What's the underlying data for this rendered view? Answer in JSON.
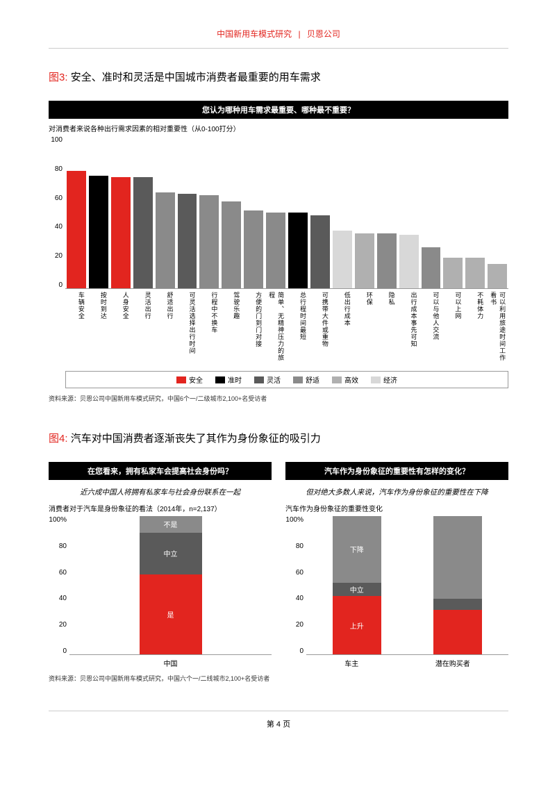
{
  "header": {
    "title": "中国新用车模式研究",
    "company": "贝恩公司",
    "separator": "|"
  },
  "fig3": {
    "label": "图3:",
    "title": "安全、准时和灵活是中国城市消费者最重要的用车需求",
    "question": "您认为哪种用车需求最重要、哪种最不重要？",
    "subtitle": "对消费者来说各种出行需求因素的相对重要性（从0-100打分）",
    "source": "资料来源：贝恩公司中国新用车模式研究，中国6个一/二级城市2,100+名受访者",
    "ylim": [
      0,
      100
    ],
    "ytick_step": 20,
    "yticks": [
      "100",
      "80",
      "60",
      "40",
      "20",
      "0"
    ],
    "colors": {
      "safety": "#e2251f",
      "ontime": "#000000",
      "flex": "#5a5a5a",
      "comfort": "#8a8a8a",
      "efficient": "#b0b0b0",
      "economy": "#d8d8d8"
    },
    "legend": [
      {
        "label": "安全",
        "color": "#e2251f"
      },
      {
        "label": "准时",
        "color": "#000000"
      },
      {
        "label": "灵活",
        "color": "#5a5a5a"
      },
      {
        "label": "舒适",
        "color": "#8a8a8a"
      },
      {
        "label": "高效",
        "color": "#b0b0b0"
      },
      {
        "label": "经济",
        "color": "#d8d8d8"
      }
    ],
    "bars": [
      {
        "label": "车辆安全",
        "value": 77,
        "color": "#e2251f"
      },
      {
        "label": "按时到达",
        "value": 74,
        "color": "#000000"
      },
      {
        "label": "人身安全",
        "value": 73,
        "color": "#e2251f"
      },
      {
        "label": "灵活出行",
        "value": 73,
        "color": "#5a5a5a"
      },
      {
        "label": "舒适出行",
        "value": 63,
        "color": "#8a8a8a"
      },
      {
        "label": "可灵活选择出行时间",
        "value": 62,
        "color": "#5a5a5a"
      },
      {
        "label": "行程中不换车",
        "value": 61,
        "color": "#8a8a8a"
      },
      {
        "label": "驾驶乐趣",
        "value": 57,
        "color": "#8a8a8a"
      },
      {
        "label": "方便的门到门对接",
        "value": 51,
        "color": "#8a8a8a"
      },
      {
        "label": "简单、无精神压力的旅程",
        "value": 50,
        "color": "#8a8a8a"
      },
      {
        "label": "总行程时间最短",
        "value": 50,
        "color": "#000000"
      },
      {
        "label": "可携带大件或重物",
        "value": 48,
        "color": "#5a5a5a"
      },
      {
        "label": "低出行成本",
        "value": 38,
        "color": "#d8d8d8"
      },
      {
        "label": "环保",
        "value": 36,
        "color": "#b0b0b0"
      },
      {
        "label": "隐私",
        "value": 36,
        "color": "#8a8a8a"
      },
      {
        "label": "出行成本事先可知",
        "value": 35,
        "color": "#d8d8d8"
      },
      {
        "label": "可以与他人交流",
        "value": 27,
        "color": "#8a8a8a"
      },
      {
        "label": "可以上网",
        "value": 20,
        "color": "#b0b0b0"
      },
      {
        "label": "不耗体力",
        "value": 20,
        "color": "#b0b0b0"
      },
      {
        "label": "可以利用旅途时间工作看书",
        "value": 16,
        "color": "#b0b0b0"
      }
    ]
  },
  "fig4": {
    "label": "图4:",
    "title": "汽车对中国消费者逐渐丧失了其作为身份象征的吸引力",
    "source": "资料来源：贝恩公司中国新用车模式研究，中国六个一/二线城市2,100+名受访者",
    "left": {
      "question": "在您看来，拥有私家车会提高社会身份吗？",
      "italic": "近六成中国人将拥有私家车与社会身份联系在一起",
      "subtitle": "消费者对于汽车是身份象征的看法（2014年，n=2,137）",
      "yticks": [
        "100%",
        "80",
        "60",
        "40",
        "20",
        "0"
      ],
      "xlabel": "中国",
      "segments": [
        {
          "label": "不是",
          "value": 12,
          "color": "#8a8a8a"
        },
        {
          "label": "中立",
          "value": 30,
          "color": "#5a5a5a"
        },
        {
          "label": "是",
          "value": 58,
          "color": "#e2251f"
        }
      ]
    },
    "right": {
      "question": "汽车作为身份象征的重要性有怎样的变化？",
      "italic": "但对绝大多数人来说，汽车作为身份象征的重要性在下降",
      "subtitle": "汽车作为身份象征的重要性变化",
      "yticks": [
        "100%",
        "80",
        "60",
        "40",
        "20",
        "0"
      ],
      "xlabels": [
        "车主",
        "潜在购买者"
      ],
      "stacks": [
        [
          {
            "label": "下降",
            "value": 48,
            "color": "#8a8a8a"
          },
          {
            "label": "中立",
            "value": 10,
            "color": "#5a5a5a"
          },
          {
            "label": "上升",
            "value": 42,
            "color": "#e2251f"
          }
        ],
        [
          {
            "label": "",
            "value": 60,
            "color": "#8a8a8a"
          },
          {
            "label": "",
            "value": 8,
            "color": "#5a5a5a"
          },
          {
            "label": "",
            "value": 32,
            "color": "#e2251f"
          }
        ]
      ]
    }
  },
  "footer": {
    "page": "第 4 页"
  }
}
